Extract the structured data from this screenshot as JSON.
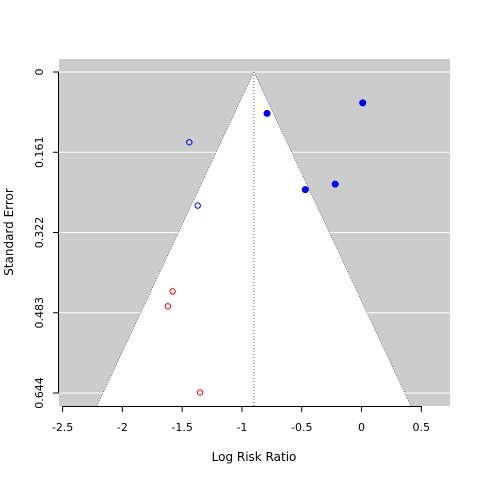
{
  "chart_data": {
    "type": "scatter",
    "subtype": "funnel",
    "xlabel": "Log Risk Ratio",
    "ylabel": "Standard Error",
    "xlim": [
      -2.53,
      0.74
    ],
    "ylim": [
      0.67,
      0
    ],
    "x_ticks": [
      -2.5,
      -2,
      -1.5,
      -1,
      -0.5,
      0,
      0.5
    ],
    "x_tick_labels": [
      "-2.5",
      "-2",
      "-1.5",
      "-1",
      "-0.5",
      "0",
      "0.5"
    ],
    "y_ticks": [
      0,
      0.161,
      0.322,
      0.483,
      0.644
    ],
    "y_tick_labels": [
      "0",
      "0.161",
      "0.322",
      "0.483",
      "0.644"
    ],
    "grid": true,
    "background_color": "#cccccc",
    "funnel_color": "#ffffff",
    "funnel": {
      "center": -0.9,
      "se_max": 0.67,
      "z": 1.96
    },
    "series": [
      {
        "marker": "filled-circle",
        "color": "#0000ee",
        "points": [
          {
            "x": 0.01,
            "y": 0.062
          },
          {
            "x": -0.79,
            "y": 0.083
          },
          {
            "x": -0.22,
            "y": 0.225
          },
          {
            "x": -0.47,
            "y": 0.236
          }
        ]
      },
      {
        "marker": "open-circle",
        "color": "#0000ee",
        "points": [
          {
            "x": -1.44,
            "y": 0.141
          },
          {
            "x": -1.37,
            "y": 0.268
          }
        ]
      },
      {
        "marker": "open-circle",
        "color": "#ee0000",
        "points": [
          {
            "x": -1.58,
            "y": 0.44
          },
          {
            "x": -1.62,
            "y": 0.47
          },
          {
            "x": -1.35,
            "y": 0.643
          }
        ]
      }
    ]
  }
}
